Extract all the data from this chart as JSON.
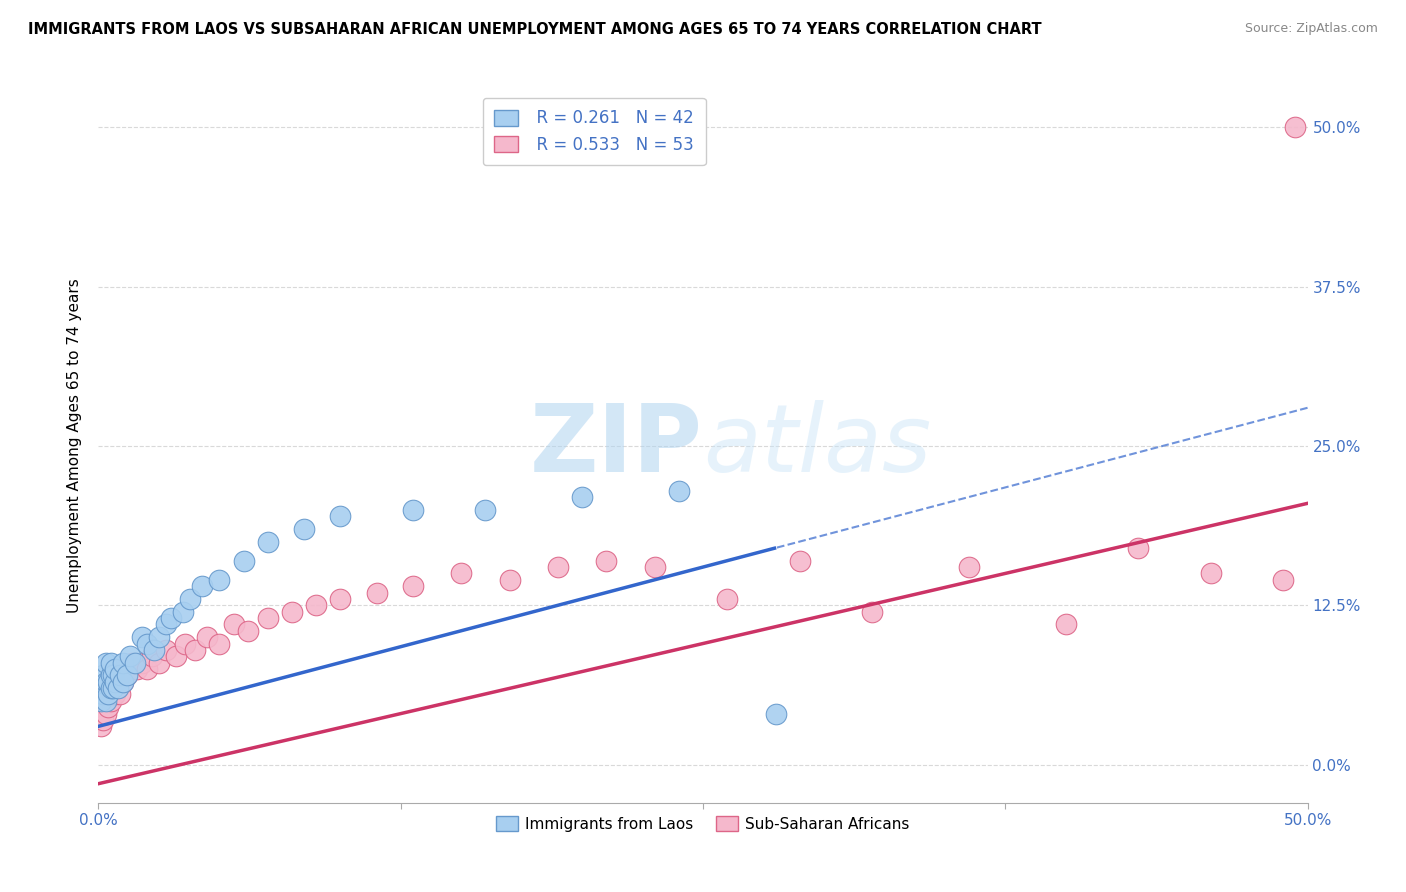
{
  "title": "IMMIGRANTS FROM LAOS VS SUBSAHARAN AFRICAN UNEMPLOYMENT AMONG AGES 65 TO 74 YEARS CORRELATION CHART",
  "source": "Source: ZipAtlas.com",
  "xlabel": "",
  "ylabel": "Unemployment Among Ages 65 to 74 years",
  "xlim": [
    0,
    0.5
  ],
  "ylim": [
    -0.03,
    0.53
  ],
  "xticks": [
    0.0,
    0.125,
    0.25,
    0.375,
    0.5
  ],
  "xtick_labels": [
    "0.0%",
    "",
    "",
    "",
    "50.0%"
  ],
  "ytick_labels_right": [
    "0.0%",
    "12.5%",
    "25.0%",
    "37.5%",
    "50.0%"
  ],
  "yticks": [
    0.0,
    0.125,
    0.25,
    0.375,
    0.5
  ],
  "grid_color": "#d0d0d0",
  "background_color": "#ffffff",
  "watermark_zip": "ZIP",
  "watermark_atlas": "atlas",
  "series": [
    {
      "name": "Immigrants from Laos",
      "R": 0.261,
      "N": 42,
      "color": "#a8cff0",
      "edge_color": "#6699cc",
      "line_color": "#3366cc",
      "line_solid_xmax": 0.28,
      "intercept": 0.03,
      "slope": 0.5
    },
    {
      "name": "Sub-Saharan Africans",
      "R": 0.533,
      "N": 53,
      "color": "#f5b8cc",
      "edge_color": "#dd6688",
      "line_color": "#cc3366",
      "intercept": -0.015,
      "slope": 0.44
    }
  ],
  "laos_x": [
    0.001,
    0.001,
    0.002,
    0.002,
    0.003,
    0.003,
    0.003,
    0.004,
    0.004,
    0.005,
    0.005,
    0.005,
    0.006,
    0.006,
    0.007,
    0.007,
    0.008,
    0.009,
    0.01,
    0.01,
    0.012,
    0.013,
    0.015,
    0.018,
    0.02,
    0.023,
    0.025,
    0.028,
    0.03,
    0.035,
    0.038,
    0.043,
    0.05,
    0.06,
    0.07,
    0.085,
    0.1,
    0.13,
    0.16,
    0.2,
    0.24,
    0.28
  ],
  "laos_y": [
    0.05,
    0.06,
    0.055,
    0.07,
    0.05,
    0.065,
    0.08,
    0.055,
    0.065,
    0.06,
    0.07,
    0.08,
    0.06,
    0.07,
    0.065,
    0.075,
    0.06,
    0.07,
    0.065,
    0.08,
    0.07,
    0.085,
    0.08,
    0.1,
    0.095,
    0.09,
    0.1,
    0.11,
    0.115,
    0.12,
    0.13,
    0.14,
    0.145,
    0.16,
    0.175,
    0.185,
    0.195,
    0.2,
    0.2,
    0.21,
    0.215,
    0.04
  ],
  "africa_x": [
    0.001,
    0.001,
    0.002,
    0.002,
    0.003,
    0.003,
    0.004,
    0.004,
    0.005,
    0.005,
    0.006,
    0.006,
    0.007,
    0.007,
    0.008,
    0.009,
    0.01,
    0.011,
    0.012,
    0.014,
    0.016,
    0.018,
    0.02,
    0.022,
    0.025,
    0.028,
    0.032,
    0.036,
    0.04,
    0.045,
    0.05,
    0.056,
    0.062,
    0.07,
    0.08,
    0.09,
    0.1,
    0.115,
    0.13,
    0.15,
    0.17,
    0.19,
    0.21,
    0.23,
    0.26,
    0.29,
    0.32,
    0.36,
    0.4,
    0.43,
    0.46,
    0.49,
    0.495
  ],
  "africa_y": [
    0.03,
    0.04,
    0.035,
    0.05,
    0.04,
    0.055,
    0.045,
    0.06,
    0.05,
    0.06,
    0.055,
    0.065,
    0.055,
    0.065,
    0.06,
    0.055,
    0.065,
    0.075,
    0.07,
    0.08,
    0.075,
    0.08,
    0.075,
    0.085,
    0.08,
    0.09,
    0.085,
    0.095,
    0.09,
    0.1,
    0.095,
    0.11,
    0.105,
    0.115,
    0.12,
    0.125,
    0.13,
    0.135,
    0.14,
    0.15,
    0.145,
    0.155,
    0.16,
    0.155,
    0.13,
    0.16,
    0.12,
    0.155,
    0.11,
    0.17,
    0.15,
    0.145,
    0.5
  ]
}
